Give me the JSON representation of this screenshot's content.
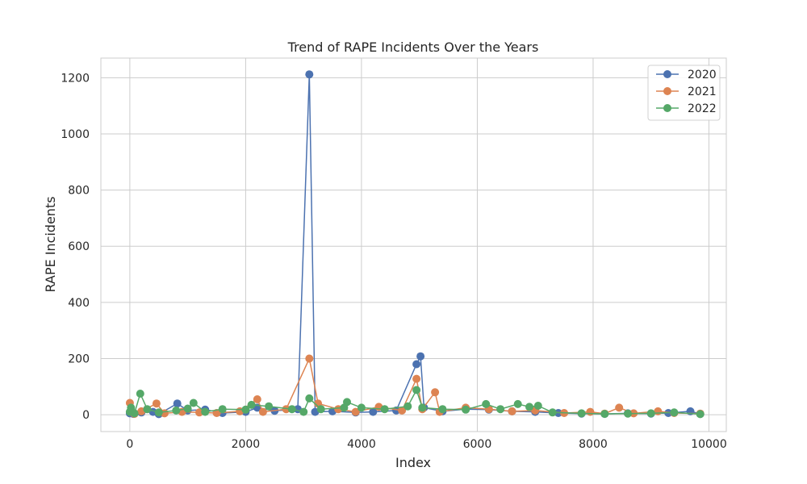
{
  "chart_data": {
    "type": "line",
    "title": "Trend of RAPE Incidents Over the Years",
    "xlabel": "Index",
    "ylabel": "RAPE Incidents",
    "xlim": [
      -500,
      10300
    ],
    "ylim": [
      -60,
      1270
    ],
    "xticks": [
      0,
      2000,
      4000,
      6000,
      8000,
      10000
    ],
    "yticks": [
      0,
      200,
      400,
      600,
      800,
      1000,
      1200
    ],
    "grid": true,
    "legend_position": "top-right",
    "series": [
      {
        "name": "2020",
        "color": "#4C72B0",
        "points": [
          [
            0,
            5
          ],
          [
            20,
            12
          ],
          [
            60,
            3
          ],
          [
            200,
            8
          ],
          [
            400,
            10
          ],
          [
            500,
            2
          ],
          [
            820,
            40
          ],
          [
            1000,
            15
          ],
          [
            1300,
            18
          ],
          [
            1600,
            6
          ],
          [
            2000,
            10
          ],
          [
            2200,
            25
          ],
          [
            2500,
            14
          ],
          [
            2900,
            20
          ],
          [
            3100,
            1212
          ],
          [
            3200,
            10
          ],
          [
            3500,
            12
          ],
          [
            3900,
            8
          ],
          [
            4200,
            10
          ],
          [
            4600,
            15
          ],
          [
            4950,
            180
          ],
          [
            5020,
            208
          ],
          [
            5080,
            25
          ],
          [
            5400,
            12
          ],
          [
            5800,
            20
          ],
          [
            6200,
            18
          ],
          [
            6600,
            12
          ],
          [
            7000,
            10
          ],
          [
            7400,
            6
          ],
          [
            7800,
            4
          ],
          [
            8200,
            3
          ],
          [
            8600,
            5
          ],
          [
            9000,
            4
          ],
          [
            9300,
            6
          ],
          [
            9680,
            12
          ],
          [
            9850,
            3
          ]
        ]
      },
      {
        "name": "2021",
        "color": "#DD8452",
        "points": [
          [
            0,
            42
          ],
          [
            20,
            10
          ],
          [
            80,
            3
          ],
          [
            200,
            12
          ],
          [
            460,
            40
          ],
          [
            600,
            5
          ],
          [
            900,
            10
          ],
          [
            1200,
            8
          ],
          [
            1500,
            6
          ],
          [
            1900,
            12
          ],
          [
            2200,
            55
          ],
          [
            2300,
            10
          ],
          [
            2700,
            20
          ],
          [
            3100,
            200
          ],
          [
            3250,
            40
          ],
          [
            3600,
            20
          ],
          [
            3900,
            10
          ],
          [
            4300,
            28
          ],
          [
            4700,
            15
          ],
          [
            4950,
            128
          ],
          [
            5050,
            20
          ],
          [
            5270,
            80
          ],
          [
            5350,
            10
          ],
          [
            5800,
            25
          ],
          [
            6200,
            20
          ],
          [
            6600,
            12
          ],
          [
            7000,
            15
          ],
          [
            7500,
            6
          ],
          [
            7950,
            10
          ],
          [
            8200,
            4
          ],
          [
            8450,
            25
          ],
          [
            8700,
            5
          ],
          [
            9120,
            12
          ],
          [
            9400,
            6
          ],
          [
            9850,
            4
          ]
        ]
      },
      {
        "name": "2022",
        "color": "#55A868",
        "points": [
          [
            0,
            10
          ],
          [
            20,
            25
          ],
          [
            80,
            5
          ],
          [
            180,
            75
          ],
          [
            300,
            20
          ],
          [
            500,
            8
          ],
          [
            800,
            15
          ],
          [
            1000,
            22
          ],
          [
            1100,
            42
          ],
          [
            1300,
            10
          ],
          [
            1600,
            20
          ],
          [
            2000,
            18
          ],
          [
            2100,
            35
          ],
          [
            2400,
            30
          ],
          [
            2800,
            20
          ],
          [
            3000,
            10
          ],
          [
            3100,
            58
          ],
          [
            3300,
            20
          ],
          [
            3700,
            25
          ],
          [
            3750,
            45
          ],
          [
            4000,
            25
          ],
          [
            4400,
            20
          ],
          [
            4800,
            30
          ],
          [
            4950,
            88
          ],
          [
            5050,
            25
          ],
          [
            5400,
            20
          ],
          [
            5800,
            18
          ],
          [
            6150,
            38
          ],
          [
            6400,
            20
          ],
          [
            6700,
            38
          ],
          [
            6900,
            28
          ],
          [
            7050,
            32
          ],
          [
            7300,
            8
          ],
          [
            7800,
            5
          ],
          [
            8200,
            3
          ],
          [
            8600,
            4
          ],
          [
            9000,
            5
          ],
          [
            9400,
            8
          ],
          [
            9850,
            2
          ]
        ]
      }
    ]
  }
}
